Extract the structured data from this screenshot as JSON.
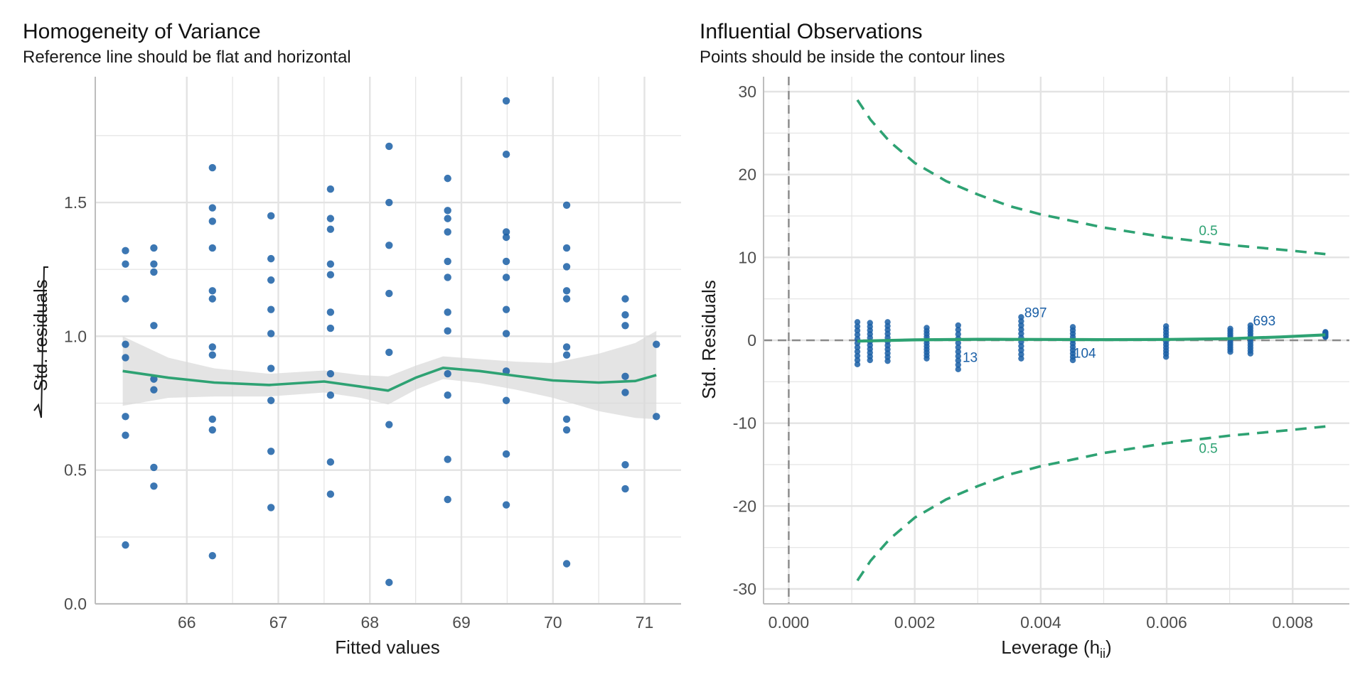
{
  "colors": {
    "point": "#1a5fa6",
    "line": "#2ea273",
    "band": "#d9d9d9",
    "grid": "#e3e3e3",
    "axis": "#bdbdbd",
    "ref": "#8a8a8a"
  },
  "chart_data": [
    {
      "type": "scatter",
      "title": "Homogeneity of Variance",
      "subtitle": "Reference line should be flat and horizontal",
      "xlabel": "Fitted values",
      "ylabel": "Std. residuals",
      "xlim": [
        65.0,
        71.4
      ],
      "ylim": [
        0.0,
        1.97
      ],
      "xticks": [
        66,
        67,
        68,
        69,
        70,
        71
      ],
      "yticks": [
        0.0,
        0.5,
        1.0,
        1.5
      ],
      "ytick_labels": [
        "0.0",
        "0.5",
        "1.0",
        "1.5"
      ],
      "grid": true,
      "points": [
        [
          65.33,
          1.32
        ],
        [
          65.33,
          1.27
        ],
        [
          65.33,
          1.14
        ],
        [
          65.33,
          0.97
        ],
        [
          65.33,
          0.92
        ],
        [
          65.33,
          0.7
        ],
        [
          65.33,
          0.63
        ],
        [
          65.33,
          0.22
        ],
        [
          65.64,
          1.33
        ],
        [
          65.64,
          1.27
        ],
        [
          65.64,
          1.24
        ],
        [
          65.64,
          1.04
        ],
        [
          65.64,
          0.84
        ],
        [
          65.64,
          0.8
        ],
        [
          65.64,
          0.51
        ],
        [
          65.64,
          0.44
        ],
        [
          66.28,
          1.63
        ],
        [
          66.28,
          1.48
        ],
        [
          66.28,
          1.43
        ],
        [
          66.28,
          1.33
        ],
        [
          66.28,
          1.17
        ],
        [
          66.28,
          1.14
        ],
        [
          66.28,
          0.96
        ],
        [
          66.28,
          0.93
        ],
        [
          66.28,
          0.69
        ],
        [
          66.28,
          0.65
        ],
        [
          66.28,
          0.18
        ],
        [
          66.92,
          1.45
        ],
        [
          66.92,
          1.29
        ],
        [
          66.92,
          1.21
        ],
        [
          66.92,
          1.1
        ],
        [
          66.92,
          1.01
        ],
        [
          66.92,
          0.88
        ],
        [
          66.92,
          0.76
        ],
        [
          66.92,
          0.57
        ],
        [
          66.92,
          0.36
        ],
        [
          67.57,
          1.55
        ],
        [
          67.57,
          1.44
        ],
        [
          67.57,
          1.4
        ],
        [
          67.57,
          1.27
        ],
        [
          67.57,
          1.23
        ],
        [
          67.57,
          1.09
        ],
        [
          67.57,
          1.03
        ],
        [
          67.57,
          0.86
        ],
        [
          67.57,
          0.78
        ],
        [
          67.57,
          0.53
        ],
        [
          67.57,
          0.41
        ],
        [
          68.21,
          1.71
        ],
        [
          68.21,
          1.5
        ],
        [
          68.21,
          1.34
        ],
        [
          68.21,
          1.16
        ],
        [
          68.21,
          0.94
        ],
        [
          68.21,
          0.67
        ],
        [
          68.21,
          0.08
        ],
        [
          68.85,
          1.59
        ],
        [
          68.85,
          1.47
        ],
        [
          68.85,
          1.44
        ],
        [
          68.85,
          1.39
        ],
        [
          68.85,
          1.28
        ],
        [
          68.85,
          1.22
        ],
        [
          68.85,
          1.09
        ],
        [
          68.85,
          1.02
        ],
        [
          68.85,
          0.86
        ],
        [
          68.85,
          0.78
        ],
        [
          68.85,
          0.54
        ],
        [
          68.85,
          0.39
        ],
        [
          69.49,
          1.88
        ],
        [
          69.49,
          1.68
        ],
        [
          69.49,
          1.39
        ],
        [
          69.49,
          1.37
        ],
        [
          69.49,
          1.28
        ],
        [
          69.49,
          1.22
        ],
        [
          69.49,
          1.1
        ],
        [
          69.49,
          1.01
        ],
        [
          69.49,
          0.87
        ],
        [
          69.49,
          0.76
        ],
        [
          69.49,
          0.56
        ],
        [
          69.49,
          0.37
        ],
        [
          70.15,
          1.49
        ],
        [
          70.15,
          1.33
        ],
        [
          70.15,
          1.26
        ],
        [
          70.15,
          1.17
        ],
        [
          70.15,
          1.14
        ],
        [
          70.15,
          0.96
        ],
        [
          70.15,
          0.93
        ],
        [
          70.15,
          0.69
        ],
        [
          70.15,
          0.65
        ],
        [
          70.15,
          0.15
        ],
        [
          70.79,
          1.14
        ],
        [
          70.79,
          1.08
        ],
        [
          70.79,
          1.04
        ],
        [
          70.79,
          0.85
        ],
        [
          70.79,
          0.79
        ],
        [
          70.79,
          0.52
        ],
        [
          70.79,
          0.43
        ],
        [
          71.13,
          0.97
        ],
        [
          71.13,
          0.7
        ]
      ],
      "smooth": {
        "x": [
          65.3,
          65.8,
          66.3,
          66.9,
          67.5,
          67.9,
          68.2,
          68.5,
          68.8,
          69.2,
          69.6,
          70.0,
          70.5,
          70.9,
          71.13
        ],
        "y": [
          0.87,
          0.845,
          0.827,
          0.818,
          0.831,
          0.812,
          0.797,
          0.845,
          0.882,
          0.87,
          0.852,
          0.835,
          0.827,
          0.833,
          0.855
        ],
        "lower": [
          0.74,
          0.77,
          0.775,
          0.775,
          0.79,
          0.77,
          0.745,
          0.8,
          0.84,
          0.825,
          0.8,
          0.77,
          0.72,
          0.695,
          0.69
        ],
        "upper": [
          1.0,
          0.92,
          0.88,
          0.86,
          0.872,
          0.855,
          0.85,
          0.89,
          0.925,
          0.915,
          0.905,
          0.9,
          0.935,
          0.975,
          1.02
        ]
      }
    },
    {
      "type": "scatter",
      "title": "Influential Observations",
      "subtitle": "Points should be inside the contour lines",
      "xlabel_main": "Leverage (h",
      "xlabel_sub": "ii",
      "xlabel_close": ")",
      "ylabel": "Std. Residuals",
      "xlim": [
        -0.0004,
        0.0089
      ],
      "ylim": [
        -31.8,
        31.8
      ],
      "xticks": [
        0.0,
        0.002,
        0.004,
        0.006,
        0.008
      ],
      "xtick_labels": [
        "0.000",
        "0.002",
        "0.004",
        "0.006",
        "0.008"
      ],
      "yticks": [
        -30,
        -20,
        -10,
        0,
        10,
        20,
        30
      ],
      "grid": true,
      "leverage_groups": [
        {
          "x": 0.00109,
          "ymin": -2.9,
          "ymax": 2.2
        },
        {
          "x": 0.00129,
          "ymin": -2.4,
          "ymax": 2.1
        },
        {
          "x": 0.00157,
          "ymin": -2.5,
          "ymax": 2.2
        },
        {
          "x": 0.00219,
          "ymin": -2.2,
          "ymax": 1.5
        },
        {
          "x": 0.00269,
          "ymin": -3.5,
          "ymax": 1.8
        },
        {
          "x": 0.00369,
          "ymin": -2.2,
          "ymax": 2.8
        },
        {
          "x": 0.00451,
          "ymin": -2.4,
          "ymax": 1.6
        },
        {
          "x": 0.00599,
          "ymin": -2.0,
          "ymax": 1.7
        },
        {
          "x": 0.00701,
          "ymin": -1.4,
          "ymax": 1.4
        },
        {
          "x": 0.00733,
          "ymin": -1.6,
          "ymax": 1.8
        },
        {
          "x": 0.00852,
          "ymin": 0.4,
          "ymax": 1.0
        }
      ],
      "smooth": {
        "x": [
          0.00109,
          0.002,
          0.003,
          0.004,
          0.005,
          0.006,
          0.007,
          0.0078,
          0.00852
        ],
        "y": [
          -0.1,
          0.05,
          0.12,
          0.1,
          0.08,
          0.1,
          0.2,
          0.4,
          0.65
        ]
      },
      "labels": [
        {
          "text": "897",
          "x": 0.00374,
          "y": 2.8
        },
        {
          "text": "693",
          "x": 0.00737,
          "y": 1.8
        },
        {
          "text": "104",
          "x": 0.00452,
          "y": -2.1
        },
        {
          "text": "13",
          "x": 0.00276,
          "y": -2.6
        }
      ],
      "contours": [
        {
          "label": "0.5",
          "label_at": [
            0.00666,
            13.3
          ]
        },
        {
          "label": "0.5",
          "label_at": [
            0.00666,
            -13.0
          ]
        }
      ],
      "contour_curve": {
        "x": [
          0.00109,
          0.0013,
          0.0016,
          0.002,
          0.0025,
          0.003,
          0.0035,
          0.004,
          0.005,
          0.006,
          0.007,
          0.008,
          0.00852
        ],
        "y": [
          29.0,
          26.6,
          24.0,
          21.4,
          19.2,
          17.6,
          16.2,
          15.2,
          13.6,
          12.4,
          11.5,
          10.8,
          10.4
        ]
      }
    }
  ]
}
